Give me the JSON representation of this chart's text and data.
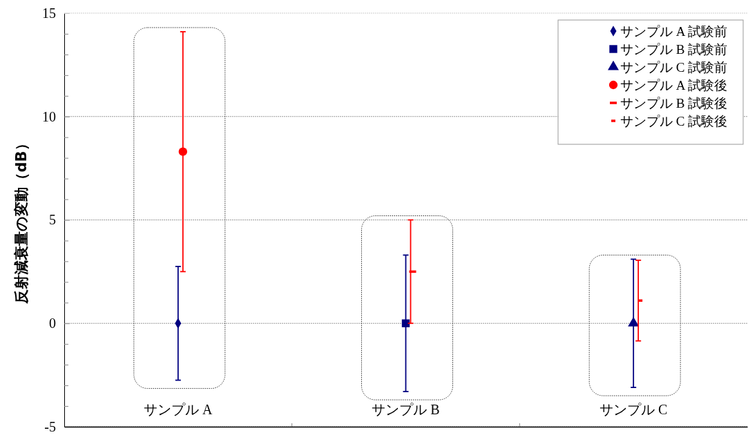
{
  "chart_data": {
    "type": "scatter",
    "ylabel": "反射減衰量の変動（dB）",
    "categories": [
      "サンプル A",
      "サンプル B",
      "サンプル C"
    ],
    "ylim": [
      -5,
      15
    ],
    "yticks": [
      -5,
      {
        "value": -4,
        "label": null
      },
      {
        "value": -3,
        "label": null
      },
      {
        "value": -2,
        "label": null
      },
      {
        "value": -1,
        "label": null
      },
      0,
      {
        "value": 1,
        "label": null
      },
      {
        "value": 2,
        "label": null
      },
      {
        "value": 3,
        "label": null
      },
      {
        "value": 4,
        "label": null
      },
      5,
      {
        "value": 6,
        "label": null
      },
      {
        "value": 7,
        "label": null
      },
      {
        "value": 8,
        "label": null
      },
      {
        "value": 9,
        "label": null
      },
      10,
      {
        "value": 11,
        "label": null
      },
      {
        "value": 12,
        "label": null
      },
      {
        "value": 13,
        "label": null
      },
      {
        "value": 14,
        "label": null
      },
      15
    ],
    "grid": "y",
    "legend": "top right",
    "series": [
      {
        "name": "サンプル A 試験前",
        "color": "#000080",
        "marker": "diamond",
        "x": [
          "サンプル A"
        ],
        "values": [
          0
        ],
        "errors": [
          [
            -2.75,
            2.75
          ]
        ]
      },
      {
        "name": "サンプル B 試験前",
        "color": "#000080",
        "marker": "square",
        "x": [
          "サンプル B"
        ],
        "values": [
          0
        ],
        "errors": [
          [
            -3.3,
            3.3
          ]
        ]
      },
      {
        "name": "サンプル C 試験前",
        "color": "#000080",
        "marker": "triangle",
        "x": [
          "サンプル C"
        ],
        "values": [
          0
        ],
        "errors": [
          [
            -3.1,
            3.1
          ]
        ]
      },
      {
        "name": "サンプル A 試験後",
        "color": "#ff0000",
        "marker": "circle",
        "x": [
          "サンプル A"
        ],
        "values": [
          8.3
        ],
        "errors": [
          [
            2.5,
            14.1
          ]
        ]
      },
      {
        "name": "サンプル B 試験後",
        "color": "#ff0000",
        "x": [
          "サンプル B"
        ],
        "values": [
          2.5
        ],
        "errors": [
          [
            0,
            5
          ]
        ]
      },
      {
        "name": "サンプル C 試験後",
        "color": "#ff0000",
        "x": [
          "サンプル C"
        ],
        "values": [
          1.1
        ],
        "errors": [
          [
            -0.85,
            3.05
          ]
        ]
      }
    ]
  }
}
